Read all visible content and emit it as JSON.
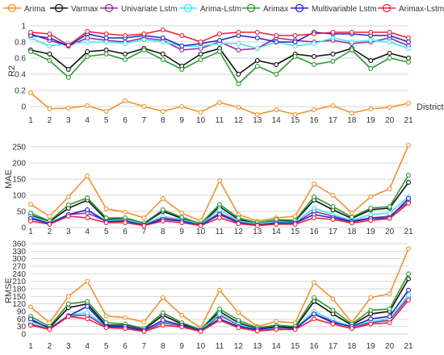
{
  "legend": {
    "items": [
      {
        "name": "Arima",
        "color": "#f0922e"
      },
      {
        "name": "Varmax",
        "color": "#111111"
      },
      {
        "name": "Univariate Lstm",
        "color": "#8e2fa0"
      },
      {
        "name": "Arima-Lstm",
        "color": "#3ee6f0"
      },
      {
        "name": "Arimax",
        "color": "#2e9a2e"
      },
      {
        "name": "Multivariable Lstm",
        "color": "#2222cc"
      },
      {
        "name": "Arimax-Lstm",
        "color": "#e8213b"
      }
    ]
  },
  "chart_data": [
    {
      "type": "line",
      "title": "",
      "xlabel": "District",
      "ylabel": "R2",
      "x": [
        1,
        2,
        3,
        4,
        5,
        6,
        7,
        8,
        9,
        10,
        11,
        12,
        13,
        14,
        15,
        16,
        17,
        18,
        19,
        20,
        21
      ],
      "ylim": [
        -0.12,
        1.0
      ],
      "yticks": [
        0,
        0.2,
        0.4,
        0.6,
        0.8,
        1
      ],
      "grid": true,
      "series": [
        {
          "name": "Arima",
          "values": [
            0.17,
            -0.03,
            -0.02,
            0.01,
            -0.06,
            0.07,
            0.0,
            -0.06,
            0.0,
            -0.07,
            0.05,
            -0.01,
            -0.1,
            -0.04,
            -0.1,
            -0.04,
            0.01,
            -0.08,
            -0.03,
            -0.01,
            0.04
          ]
        },
        {
          "name": "Varmax",
          "values": [
            0.7,
            0.65,
            0.46,
            0.68,
            0.7,
            0.65,
            0.72,
            0.65,
            0.5,
            0.65,
            0.72,
            0.4,
            0.57,
            0.52,
            0.65,
            0.62,
            0.65,
            0.72,
            0.57,
            0.66,
            0.6
          ]
        },
        {
          "name": "Univariate Lstm",
          "values": [
            0.9,
            0.82,
            0.75,
            0.85,
            0.82,
            0.8,
            0.85,
            0.82,
            0.7,
            0.72,
            0.8,
            0.7,
            0.72,
            0.85,
            0.82,
            0.8,
            0.82,
            0.78,
            0.8,
            0.85,
            0.75
          ]
        },
        {
          "name": "Arima-Lstm",
          "values": [
            0.85,
            0.75,
            0.78,
            0.8,
            0.8,
            0.78,
            0.83,
            0.8,
            0.75,
            0.75,
            0.78,
            0.78,
            0.72,
            0.8,
            0.75,
            0.78,
            0.85,
            0.8,
            0.82,
            0.8,
            0.72
          ]
        },
        {
          "name": "Arimax",
          "values": [
            0.68,
            0.57,
            0.36,
            0.62,
            0.65,
            0.58,
            0.7,
            0.58,
            0.46,
            0.58,
            0.68,
            0.28,
            0.5,
            0.4,
            0.62,
            0.52,
            0.56,
            0.7,
            0.47,
            0.6,
            0.55
          ]
        },
        {
          "name": "Multivariable Lstm",
          "values": [
            0.88,
            0.85,
            0.75,
            0.9,
            0.85,
            0.85,
            0.88,
            0.85,
            0.75,
            0.78,
            0.82,
            0.88,
            0.85,
            0.8,
            0.8,
            0.92,
            0.9,
            0.9,
            0.88,
            0.88,
            0.8
          ]
        },
        {
          "name": "Arimax-Lstm",
          "values": [
            0.92,
            0.9,
            0.76,
            0.93,
            0.9,
            0.88,
            0.9,
            0.95,
            0.88,
            0.8,
            0.9,
            0.92,
            0.92,
            0.88,
            0.88,
            0.9,
            0.92,
            0.92,
            0.92,
            0.92,
            0.85
          ]
        }
      ]
    },
    {
      "type": "line",
      "title": "",
      "xlabel": "",
      "ylabel": "MAE",
      "x": [
        1,
        2,
        3,
        4,
        5,
        6,
        7,
        8,
        9,
        10,
        11,
        12,
        13,
        14,
        15,
        16,
        17,
        18,
        19,
        20,
        21
      ],
      "ylim": [
        0,
        260
      ],
      "yticks": [
        0,
        50,
        100,
        150,
        200,
        250
      ],
      "grid": true,
      "series": [
        {
          "name": "Arima",
          "values": [
            72,
            35,
            95,
            160,
            58,
            48,
            30,
            90,
            45,
            20,
            145,
            40,
            20,
            30,
            35,
            135,
            100,
            45,
            95,
            120,
            255
          ]
        },
        {
          "name": "Varmax",
          "values": [
            38,
            18,
            60,
            85,
            25,
            28,
            12,
            50,
            28,
            10,
            65,
            25,
            12,
            20,
            20,
            85,
            55,
            28,
            55,
            60,
            140
          ]
        },
        {
          "name": "Univariate Lstm",
          "values": [
            30,
            14,
            40,
            45,
            20,
            22,
            8,
            30,
            22,
            8,
            45,
            18,
            10,
            15,
            14,
            50,
            35,
            20,
            30,
            35,
            80
          ]
        },
        {
          "name": "Arima-Lstm",
          "values": [
            35,
            16,
            40,
            55,
            22,
            25,
            10,
            35,
            25,
            10,
            55,
            20,
            12,
            18,
            16,
            60,
            40,
            22,
            40,
            45,
            95
          ]
        },
        {
          "name": "Arimax",
          "values": [
            45,
            20,
            70,
            92,
            30,
            30,
            14,
            55,
            32,
            12,
            72,
            30,
            15,
            25,
            22,
            95,
            65,
            32,
            60,
            65,
            162
          ]
        },
        {
          "name": "Multivariable Lstm",
          "values": [
            28,
            12,
            40,
            55,
            18,
            20,
            8,
            25,
            20,
            8,
            40,
            15,
            8,
            14,
            14,
            40,
            30,
            18,
            28,
            30,
            90
          ]
        },
        {
          "name": "Arimax-Lstm",
          "values": [
            20,
            10,
            35,
            30,
            15,
            15,
            6,
            20,
            15,
            6,
            30,
            12,
            6,
            10,
            10,
            30,
            25,
            14,
            22,
            28,
            75
          ]
        }
      ]
    },
    {
      "type": "line",
      "title": "",
      "xlabel": "",
      "ylabel": "RMSE",
      "x": [
        1,
        2,
        3,
        4,
        5,
        6,
        7,
        8,
        9,
        10,
        11,
        12,
        13,
        14,
        15,
        16,
        17,
        18,
        19,
        20,
        21
      ],
      "ylim": [
        0,
        360
      ],
      "yticks": [
        0,
        30,
        60,
        90,
        120,
        150,
        180,
        210,
        240,
        270,
        300,
        330,
        360
      ],
      "grid": true,
      "series": [
        {
          "name": "Arima",
          "values": [
            108,
            45,
            150,
            210,
            72,
            65,
            48,
            145,
            75,
            25,
            175,
            85,
            30,
            50,
            45,
            205,
            140,
            45,
            145,
            160,
            340
          ]
        },
        {
          "name": "Varmax",
          "values": [
            55,
            25,
            105,
            120,
            35,
            35,
            18,
            75,
            40,
            15,
            90,
            45,
            20,
            30,
            25,
            130,
            80,
            35,
            80,
            90,
            220
          ]
        },
        {
          "name": "Univariate Lstm",
          "values": [
            40,
            20,
            72,
            75,
            28,
            28,
            12,
            45,
            32,
            12,
            75,
            35,
            15,
            22,
            20,
            80,
            50,
            28,
            45,
            55,
            145
          ]
        },
        {
          "name": "Arima-Lstm",
          "values": [
            50,
            22,
            75,
            85,
            30,
            32,
            15,
            50,
            35,
            14,
            80,
            38,
            18,
            25,
            22,
            90,
            55,
            30,
            50,
            60,
            155
          ]
        },
        {
          "name": "Arimax",
          "values": [
            70,
            30,
            120,
            130,
            45,
            40,
            22,
            85,
            45,
            18,
            100,
            55,
            25,
            35,
            30,
            145,
            95,
            40,
            95,
            100,
            240
          ]
        },
        {
          "name": "Multivariable Lstm",
          "values": [
            60,
            22,
            72,
            110,
            30,
            30,
            15,
            55,
            35,
            14,
            60,
            30,
            18,
            28,
            22,
            80,
            45,
            30,
            60,
            70,
            175
          ]
        },
        {
          "name": "Arimax-Lstm",
          "values": [
            35,
            18,
            70,
            60,
            25,
            22,
            10,
            35,
            28,
            10,
            55,
            25,
            12,
            18,
            18,
            60,
            40,
            22,
            40,
            45,
            135
          ]
        }
      ]
    }
  ]
}
